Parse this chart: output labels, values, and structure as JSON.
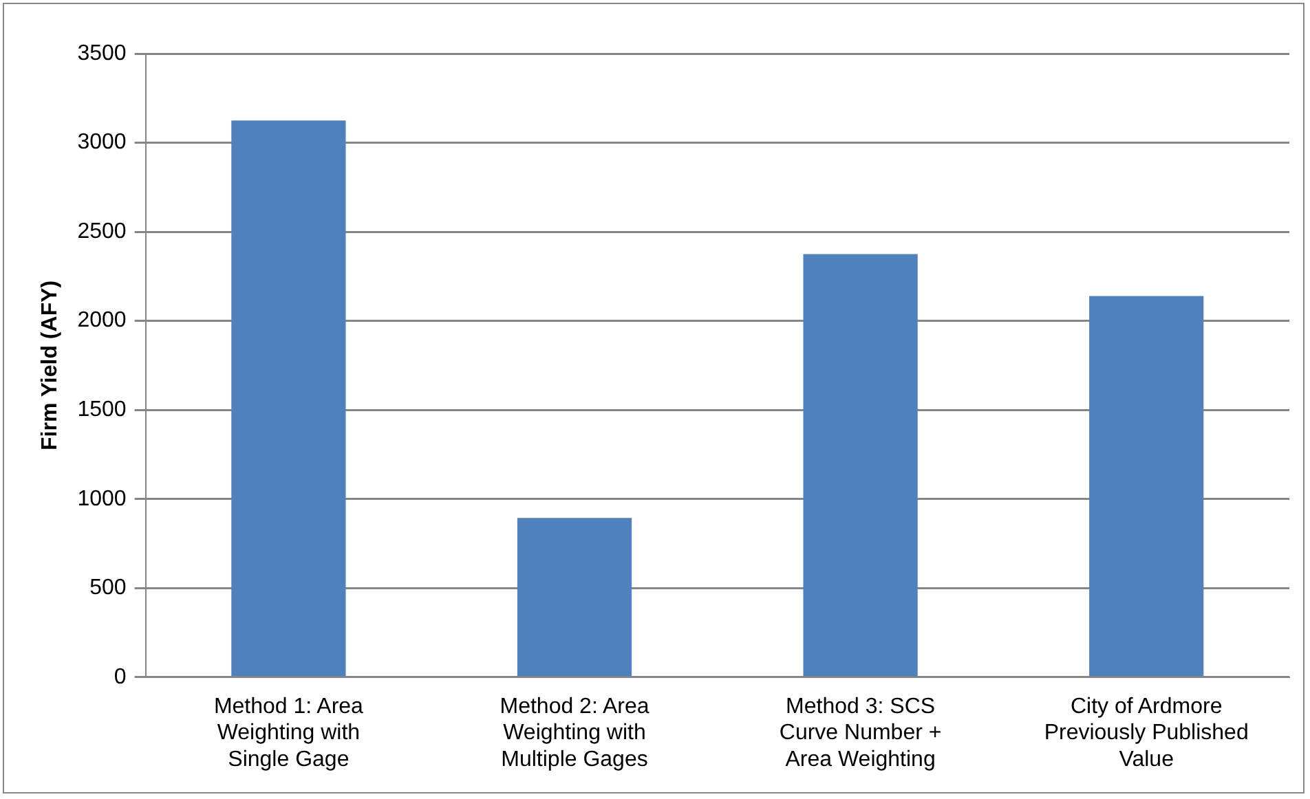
{
  "chart_data": {
    "type": "bar",
    "ylabel": "Firm Yield (AFY)",
    "categories": [
      "Method 1: Area Weighting with Single Gage",
      "Method 2: Area Weighting with Multiple Gages",
      "Method 3: SCS Curve Number + Area Weighting",
      "City of Ardmore Previously Published Value"
    ],
    "values": [
      3125,
      894,
      2375,
      2139
    ],
    "color": "#4f81bd",
    "ylim": [
      0,
      3500
    ],
    "yticks": [
      0,
      500,
      1000,
      1500,
      2000,
      2500,
      3000,
      3500
    ],
    "grid": "y"
  }
}
